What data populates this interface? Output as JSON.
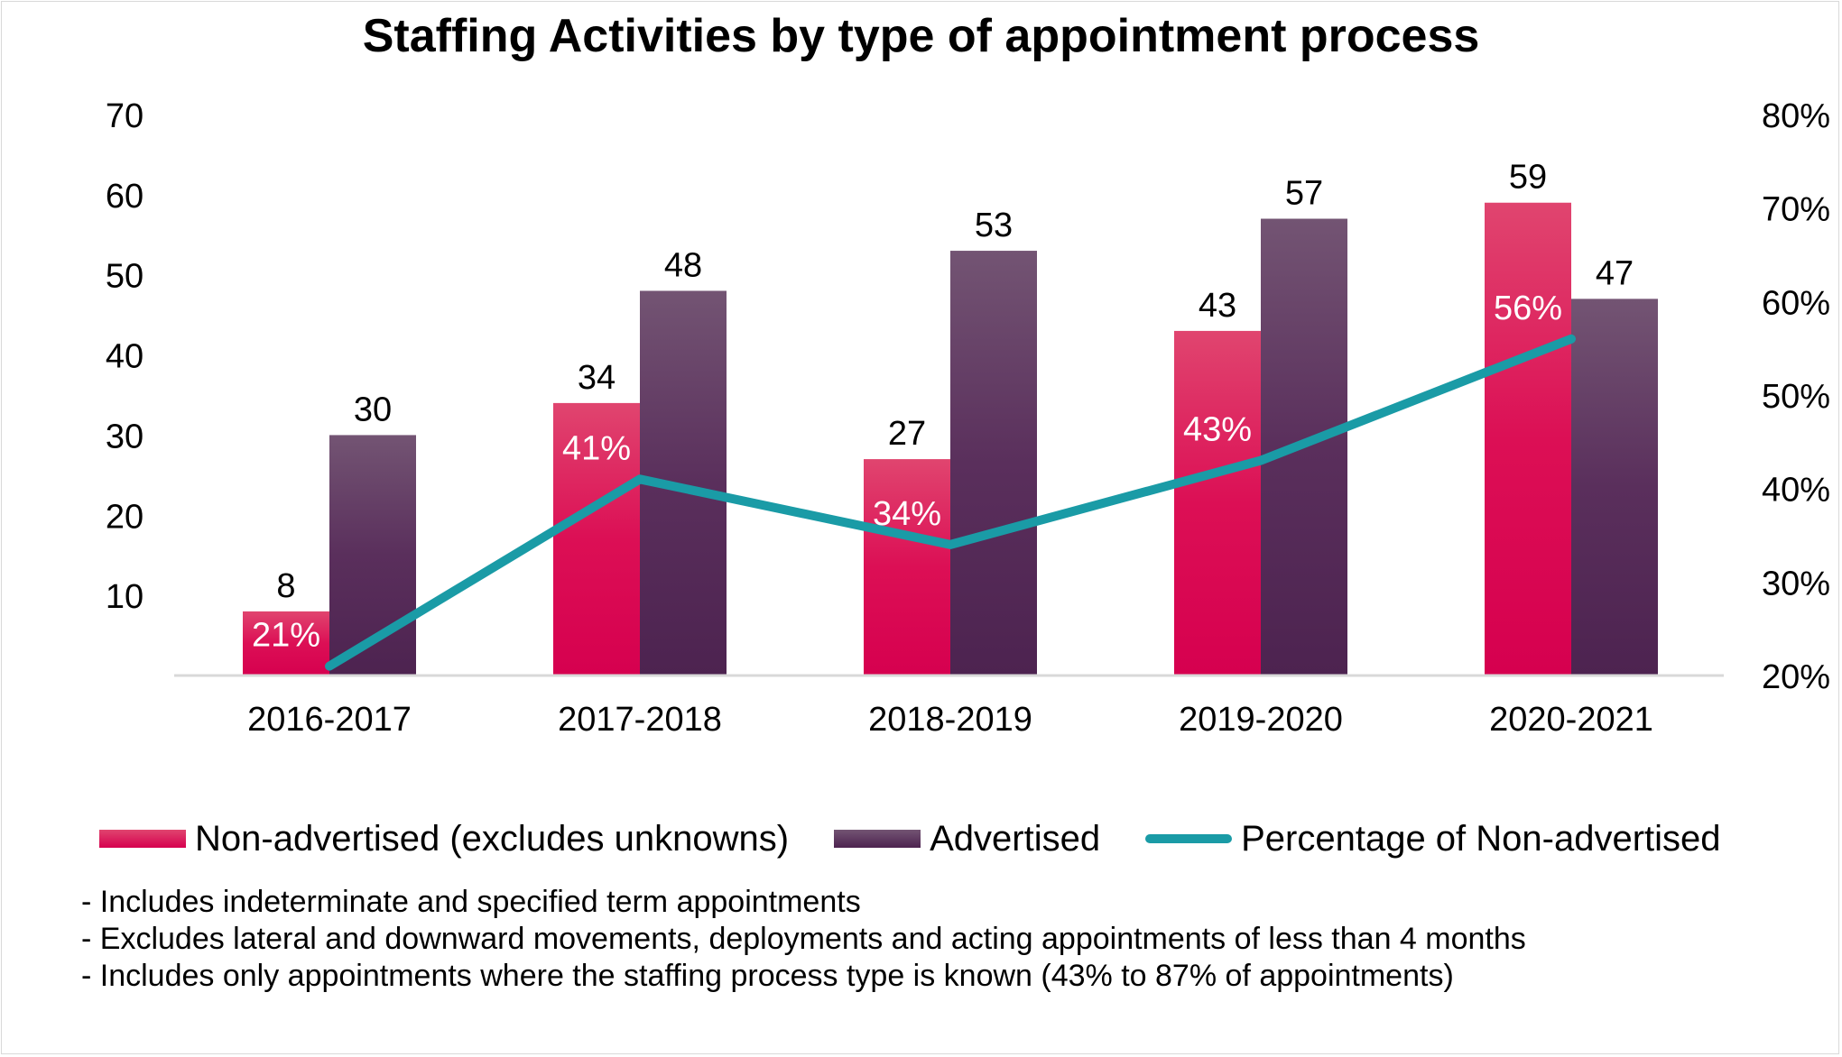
{
  "chart_data": {
    "type": "bar",
    "title": "Staffing Activities by type of appointment process",
    "categories": [
      "2016-2017",
      "2017-2018",
      "2018-2019",
      "2019-2020",
      "2020-2021"
    ],
    "series": [
      {
        "name": "Non-advertised (excludes unknowns)",
        "type": "bar",
        "axis": "left",
        "values": [
          8,
          34,
          27,
          43,
          59
        ],
        "color": "#e0195c"
      },
      {
        "name": "Advertised",
        "type": "bar",
        "axis": "left",
        "values": [
          30,
          48,
          53,
          57,
          47
        ],
        "color": "#5e2d5e"
      },
      {
        "name": "Percentage of Non-advertised",
        "type": "line",
        "axis": "right",
        "values": [
          21,
          41,
          34,
          43,
          56
        ],
        "labels": [
          "21%",
          "41%",
          "34%",
          "43%",
          "56%"
        ],
        "color": "#1a9ba6"
      }
    ],
    "y_left": {
      "min": 0,
      "max": 70,
      "ticks": [
        "10",
        "20",
        "30",
        "40",
        "50",
        "60",
        "70"
      ]
    },
    "y_right": {
      "min": 20,
      "max": 80,
      "ticks": [
        "20%",
        "30%",
        "40%",
        "50%",
        "60%",
        "70%",
        "80%"
      ]
    },
    "grid": false,
    "legend_position": "bottom"
  },
  "notes": [
    "- Includes indeterminate and specified term appointments",
    "- Excludes lateral and downward movements, deployments and acting appointments of less than 4 months",
    "- Includes only appointments where the staffing process type is known (43% to 87% of appointments)"
  ]
}
